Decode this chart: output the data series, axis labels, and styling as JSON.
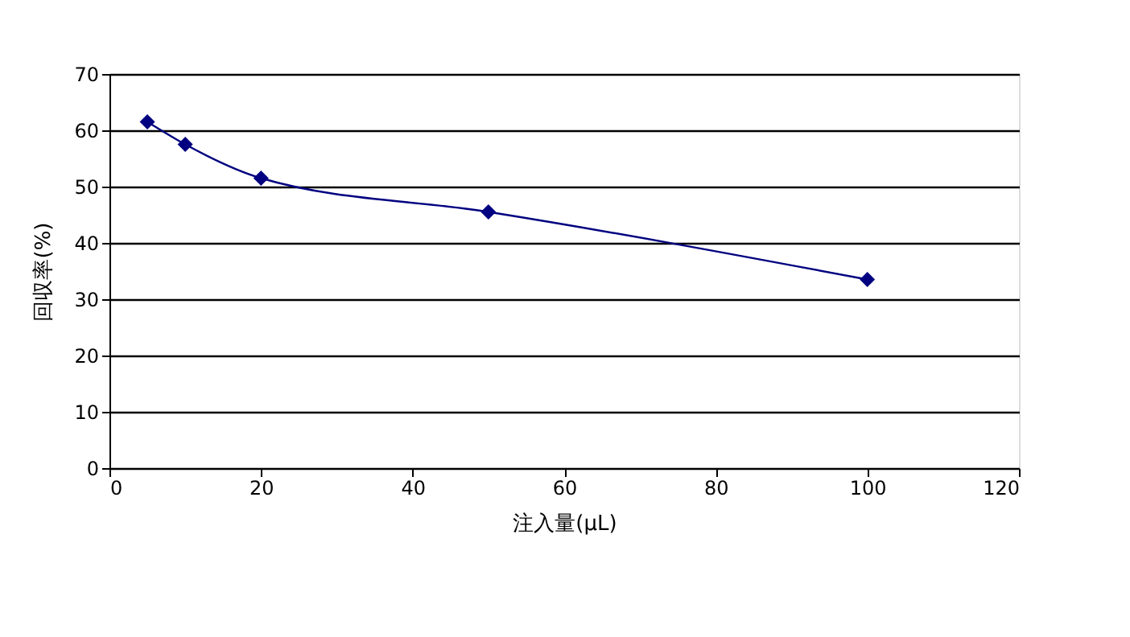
{
  "chart_data": {
    "type": "line",
    "xlabel": "注入量(μL)",
    "ylabel": "回収率(%)",
    "x": [
      5,
      10,
      20,
      50,
      100
    ],
    "series": [
      {
        "color": "#000080",
        "values": [
          61.5,
          57.5,
          51.5,
          45.5,
          33.5
        ]
      }
    ],
    "xlim": [
      0,
      120
    ],
    "xticks": [
      0,
      20,
      40,
      60,
      80,
      100,
      120
    ],
    "ylim": [
      0,
      70
    ],
    "yticks": [
      0,
      10,
      20,
      30,
      40,
      50,
      60,
      70
    ],
    "grid": "y",
    "marker": "diamond",
    "line_style": "solid",
    "legend": false
  }
}
